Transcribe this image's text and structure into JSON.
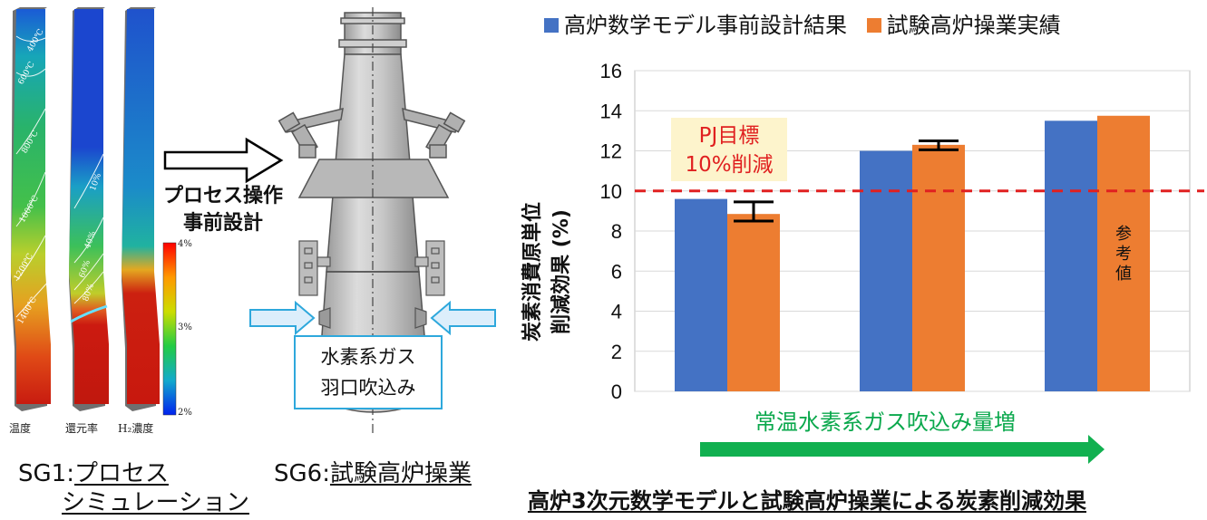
{
  "simulation": {
    "panel_labels": [
      "温度",
      "還元率",
      "H₂濃度"
    ],
    "temp_contours": [
      "400℃",
      "600℃",
      "800℃",
      "1000℃",
      "1200℃",
      "1400℃"
    ],
    "reduction_contours": [
      "10%",
      "40%",
      "60%",
      "80%"
    ],
    "colorbar_ticks": [
      "4%",
      "3%",
      "2%"
    ]
  },
  "arrow_label": [
    "プロセス操作",
    "事前設計"
  ],
  "captions": {
    "sg1_prefix": "SG1:",
    "sg1_line1": "プロセス",
    "sg1_line2": "シミュレーション",
    "sg6_prefix": "SG6:",
    "sg6_text": "試験高炉操業",
    "chart_title": "高炉3次元数学モデルと試験高炉操業による炭素削減効果"
  },
  "furnace": {
    "label_lines": [
      "水素系ガス",
      "羽口吹込み"
    ]
  },
  "chart_data": {
    "type": "bar",
    "title": "",
    "ylabel_lines": [
      "炭素消費原単位",
      "削減効果 (%)"
    ],
    "xlabel": "常温水素系ガス吹込み量増",
    "categories": [
      "",
      "",
      ""
    ],
    "ylim": [
      0,
      16
    ],
    "yticks": [
      "0",
      "2",
      "4",
      "6",
      "8",
      "10",
      "12",
      "14",
      "16"
    ],
    "grid": true,
    "legend_position": "top",
    "series": [
      {
        "name": "高炉数学モデル事前設計結果",
        "color": "#4472C4",
        "values": [
          9.6,
          12.0,
          13.5
        ]
      },
      {
        "name": "試験高炉操業実績",
        "color": "#ED7D31",
        "values": [
          8.85,
          12.3,
          13.75
        ],
        "error_low": [
          8.5,
          12.05,
          null
        ],
        "error_high": [
          9.45,
          12.5,
          null
        ]
      }
    ],
    "target_line": {
      "value": 10,
      "color": "#E02020",
      "label_lines": [
        "PJ目標",
        "10%削減"
      ]
    },
    "bar_annotation": "参考値"
  }
}
